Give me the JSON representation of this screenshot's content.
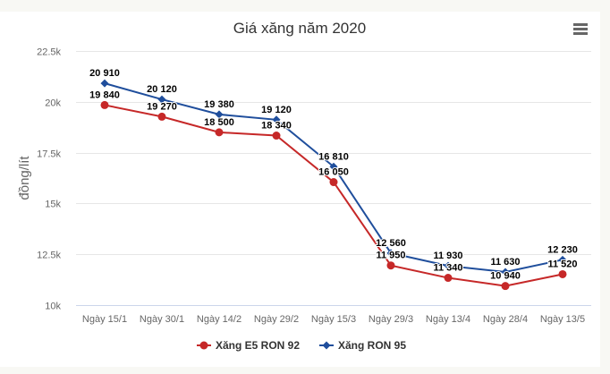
{
  "menu": {
    "icon": "hamburger-menu-icon"
  },
  "chart_data": {
    "type": "line",
    "title": "Giá xăng năm 2020",
    "xlabel": "",
    "ylabel": "đồng/lít",
    "ylim": [
      10000,
      22500
    ],
    "yticks": [
      10000,
      12500,
      15000,
      17500,
      20000,
      22500
    ],
    "ytick_labels": [
      "10k",
      "12.5k",
      "15k",
      "17.5k",
      "20k",
      "22.5k"
    ],
    "grid": true,
    "legend_position": "bottom",
    "categories": [
      "Ngày 15/1",
      "Ngày 30/1",
      "Ngày 14/2",
      "Ngày 29/2",
      "Ngày 15/3",
      "Ngày 29/3",
      "Ngày 13/4",
      "Ngày 28/4",
      "Ngày 13/5"
    ],
    "series": [
      {
        "name": "Xăng E5 RON 92",
        "color": "#c62828",
        "marker": "circle",
        "values": [
          19840,
          19270,
          18500,
          18340,
          16050,
          11950,
          11340,
          10940,
          11520
        ],
        "labels": [
          "19 840",
          "19 270",
          "18 500",
          "18 340",
          "16 050",
          "11 950",
          "11 340",
          "10 940",
          "11 520"
        ]
      },
      {
        "name": "Xăng RON 95",
        "color": "#1f4e9c",
        "marker": "diamond",
        "values": [
          20910,
          20120,
          19380,
          19120,
          16810,
          12560,
          11930,
          11630,
          12230
        ],
        "labels": [
          "20 910",
          "20 120",
          "19 380",
          "19 120",
          "16 810",
          "12 560",
          "11 930",
          "11 630",
          "12 230"
        ]
      }
    ]
  }
}
